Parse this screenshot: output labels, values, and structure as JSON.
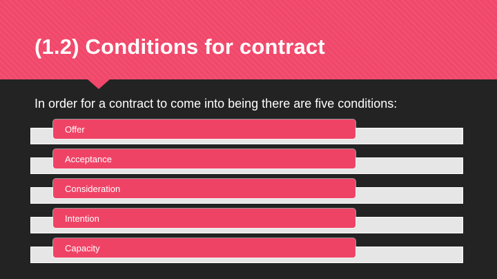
{
  "slide": {
    "title": "(1.2) Conditions for contract",
    "intro": "In order for a contract to come into being there are five conditions:",
    "conditions": [
      "Offer",
      "Acceptance",
      "Consideration",
      "Intention",
      "Capacity"
    ]
  },
  "colors": {
    "accent": "#f0476a",
    "background": "#232323",
    "bar": "#e6e6e6",
    "text": "#ffffff"
  }
}
